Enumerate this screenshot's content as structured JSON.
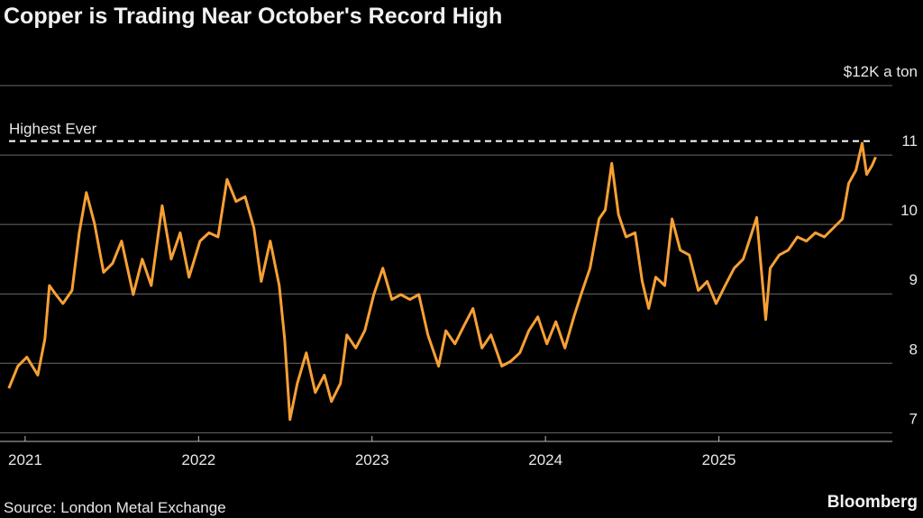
{
  "chart_data": {
    "type": "line",
    "title": "Copper is Trading Near October's Record High",
    "source": "Source: London Metal Exchange",
    "brand": "Bloomberg",
    "annotations": [
      {
        "text": "Highest Ever",
        "value": 11.2
      }
    ],
    "xlim": [
      2020.855,
      2026.0
    ],
    "xticks": [
      2021,
      2022,
      2023,
      2024,
      2025
    ],
    "ylim": [
      6.94,
      12.0
    ],
    "yticks": [
      7,
      8,
      9,
      10,
      11,
      {
        "value": 12,
        "label": "$12K a ton"
      }
    ],
    "grid": true,
    "x": [
      2020.906,
      2020.958,
      2021.01,
      2021.073,
      2021.114,
      2021.14,
      2021.177,
      2021.218,
      2021.27,
      2021.312,
      2021.353,
      2021.4,
      2021.452,
      2021.504,
      2021.556,
      2021.623,
      2021.675,
      2021.727,
      2021.79,
      2021.842,
      2021.894,
      2021.945,
      2022.008,
      2022.06,
      2022.112,
      2022.164,
      2022.216,
      2022.268,
      2022.319,
      2022.361,
      2022.413,
      2022.465,
      2022.496,
      2022.527,
      2022.569,
      2022.621,
      2022.673,
      2022.725,
      2022.766,
      2022.818,
      2022.855,
      2022.906,
      2022.958,
      2023.01,
      2023.062,
      2023.114,
      2023.166,
      2023.218,
      2023.27,
      2023.322,
      2023.384,
      2023.426,
      2023.478,
      2023.53,
      2023.582,
      2023.634,
      2023.686,
      2023.748,
      2023.8,
      2023.852,
      2023.904,
      2023.956,
      2024.008,
      2024.06,
      2024.112,
      2024.164,
      2024.205,
      2024.257,
      2024.309,
      2024.345,
      2024.382,
      2024.421,
      2024.465,
      2024.517,
      2024.558,
      2024.595,
      2024.636,
      2024.688,
      2024.73,
      2024.777,
      2024.829,
      2024.881,
      2024.932,
      2024.984,
      2025.036,
      2025.088,
      2025.14,
      2025.182,
      2025.218,
      2025.244,
      2025.27,
      2025.296,
      2025.348,
      2025.4,
      2025.452,
      2025.504,
      2025.556,
      2025.608,
      2025.66,
      2025.712,
      2025.748,
      2025.79,
      2025.826,
      2025.852,
      2025.883,
      2025.904
    ],
    "series": [
      {
        "name": "Copper",
        "color": "#f7a035",
        "values": [
          7.64,
          7.96,
          8.09,
          7.83,
          8.35,
          9.12,
          8.99,
          8.86,
          9.05,
          9.88,
          10.46,
          10.01,
          9.31,
          9.44,
          9.76,
          8.99,
          9.5,
          9.12,
          10.27,
          9.5,
          9.88,
          9.24,
          9.76,
          9.88,
          9.82,
          10.65,
          10.33,
          10.4,
          9.95,
          9.18,
          9.76,
          9.12,
          8.35,
          7.19,
          7.71,
          8.15,
          7.58,
          7.83,
          7.45,
          7.71,
          8.41,
          8.22,
          8.47,
          8.99,
          9.37,
          8.92,
          8.99,
          8.92,
          8.99,
          8.41,
          7.96,
          8.47,
          8.28,
          8.54,
          8.79,
          8.22,
          8.41,
          7.96,
          8.03,
          8.15,
          8.47,
          8.67,
          8.28,
          8.6,
          8.22,
          8.67,
          8.99,
          9.37,
          10.08,
          10.21,
          10.88,
          10.14,
          9.82,
          9.88,
          9.18,
          8.79,
          9.24,
          9.12,
          10.08,
          9.63,
          9.56,
          9.05,
          9.18,
          8.86,
          9.12,
          9.37,
          9.5,
          9.82,
          10.1,
          9.37,
          8.63,
          9.37,
          9.56,
          9.63,
          9.82,
          9.76,
          9.88,
          9.82,
          9.95,
          10.08,
          10.59,
          10.78,
          11.17,
          10.72,
          10.85,
          10.97
        ]
      }
    ]
  }
}
